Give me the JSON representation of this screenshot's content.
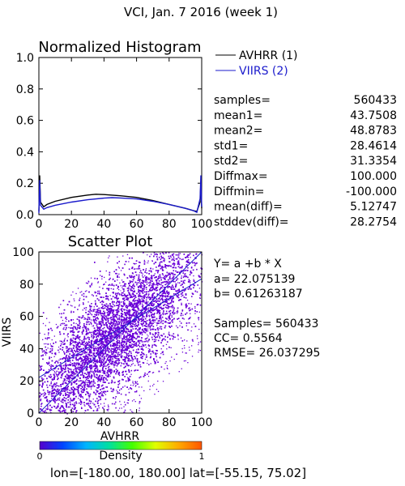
{
  "page_title": "VCI,  Jan. 7 2016 (week 1)",
  "histogram": {
    "title": "Normalized Histogram",
    "legend": [
      {
        "label": "AVHRR (1)",
        "color": "#000000"
      },
      {
        "label": "VIIRS (2)",
        "color": "#1a1acc"
      }
    ],
    "stats": [
      {
        "label": "samples=",
        "value": "560433"
      },
      {
        "label": "mean1=",
        "value": "43.7508"
      },
      {
        "label": "mean2=",
        "value": "48.8783"
      },
      {
        "label": "std1=",
        "value": "28.4614"
      },
      {
        "label": "std2=",
        "value": "31.3354"
      },
      {
        "label": "Diffmax=",
        "value": "100.000"
      },
      {
        "label": "Diffmin=",
        "value": "-100.000"
      },
      {
        "label": "mean(diff)=",
        "value": "5.12747"
      },
      {
        "label": "stddev(diff)=",
        "value": "28.2754"
      }
    ]
  },
  "scatter": {
    "title": "Scatter Plot",
    "xlabel": "AVHRR",
    "ylabel": "VIIRS",
    "equation": "Y= a +b * X",
    "a_text": "a= 22.075139",
    "b_text": "b= 0.61263187",
    "samples_text": "Samples= 560433",
    "cc_text": "CC=  0.5564",
    "rmse_text": "RMSE= 26.037295",
    "point_color": "#6a00d8",
    "line_color": "#1a1acc"
  },
  "colorbar": {
    "label": "Density",
    "min_label": "0",
    "max_label": "1",
    "colors": [
      "#5500cc",
      "#0044ff",
      "#00b4ff",
      "#00e0a0",
      "#44ff00",
      "#e0ff00",
      "#ffaa00",
      "#ff5500"
    ]
  },
  "footer_text": "lon=[-180.00, 180.00] lat=[-55.15, 75.02]",
  "chart_data": [
    {
      "type": "line",
      "title": "Normalized Histogram",
      "xlabel": "",
      "ylabel": "",
      "xlim": [
        0,
        100
      ],
      "ylim": [
        0,
        1
      ],
      "xticks": [
        "0",
        "20",
        "40",
        "60",
        "80",
        "100"
      ],
      "yticks": [
        "0.0",
        "0.2",
        "0.4",
        "0.6",
        "0.8",
        "1.0"
      ],
      "series": [
        {
          "name": "AVHRR (1)",
          "color": "#000000",
          "x": [
            0,
            0.5,
            1,
            3,
            5,
            10,
            20,
            30,
            35,
            40,
            50,
            60,
            70,
            80,
            90,
            95,
            97,
            99,
            99.5,
            100
          ],
          "y": [
            0.02,
            0.25,
            0.08,
            0.05,
            0.065,
            0.085,
            0.11,
            0.125,
            0.13,
            0.128,
            0.12,
            0.11,
            0.09,
            0.065,
            0.04,
            0.025,
            0.02,
            0.08,
            0.21,
            0.04
          ]
        },
        {
          "name": "VIIRS (2)",
          "color": "#1a1acc",
          "x": [
            0,
            0.5,
            1,
            3,
            5,
            10,
            20,
            30,
            40,
            45,
            50,
            60,
            70,
            80,
            90,
            95,
            97,
            99,
            99.5,
            100
          ],
          "y": [
            0.01,
            0.22,
            0.06,
            0.035,
            0.045,
            0.06,
            0.08,
            0.095,
            0.105,
            0.108,
            0.106,
            0.1,
            0.085,
            0.065,
            0.04,
            0.025,
            0.015,
            0.1,
            0.25,
            0.05
          ]
        }
      ]
    },
    {
      "type": "scatter",
      "title": "Scatter Plot",
      "xlabel": "AVHRR",
      "ylabel": "VIIRS",
      "xlim": [
        0,
        100
      ],
      "ylim": [
        0,
        100
      ],
      "xticks": [
        "0",
        "20",
        "40",
        "60",
        "80",
        "100"
      ],
      "yticks": [
        "0",
        "20",
        "40",
        "60",
        "80",
        "100"
      ],
      "samples": 560433,
      "regression": {
        "intercept": 22.075139,
        "slope": 0.61263187
      },
      "cc": 0.5564,
      "rmse": 26.037295,
      "identity_line": {
        "x": [
          0,
          100
        ],
        "y": [
          0,
          100
        ]
      },
      "fit_line": {
        "x": [
          0,
          100
        ],
        "y": [
          22.075139,
          83.338326
        ]
      }
    }
  ]
}
